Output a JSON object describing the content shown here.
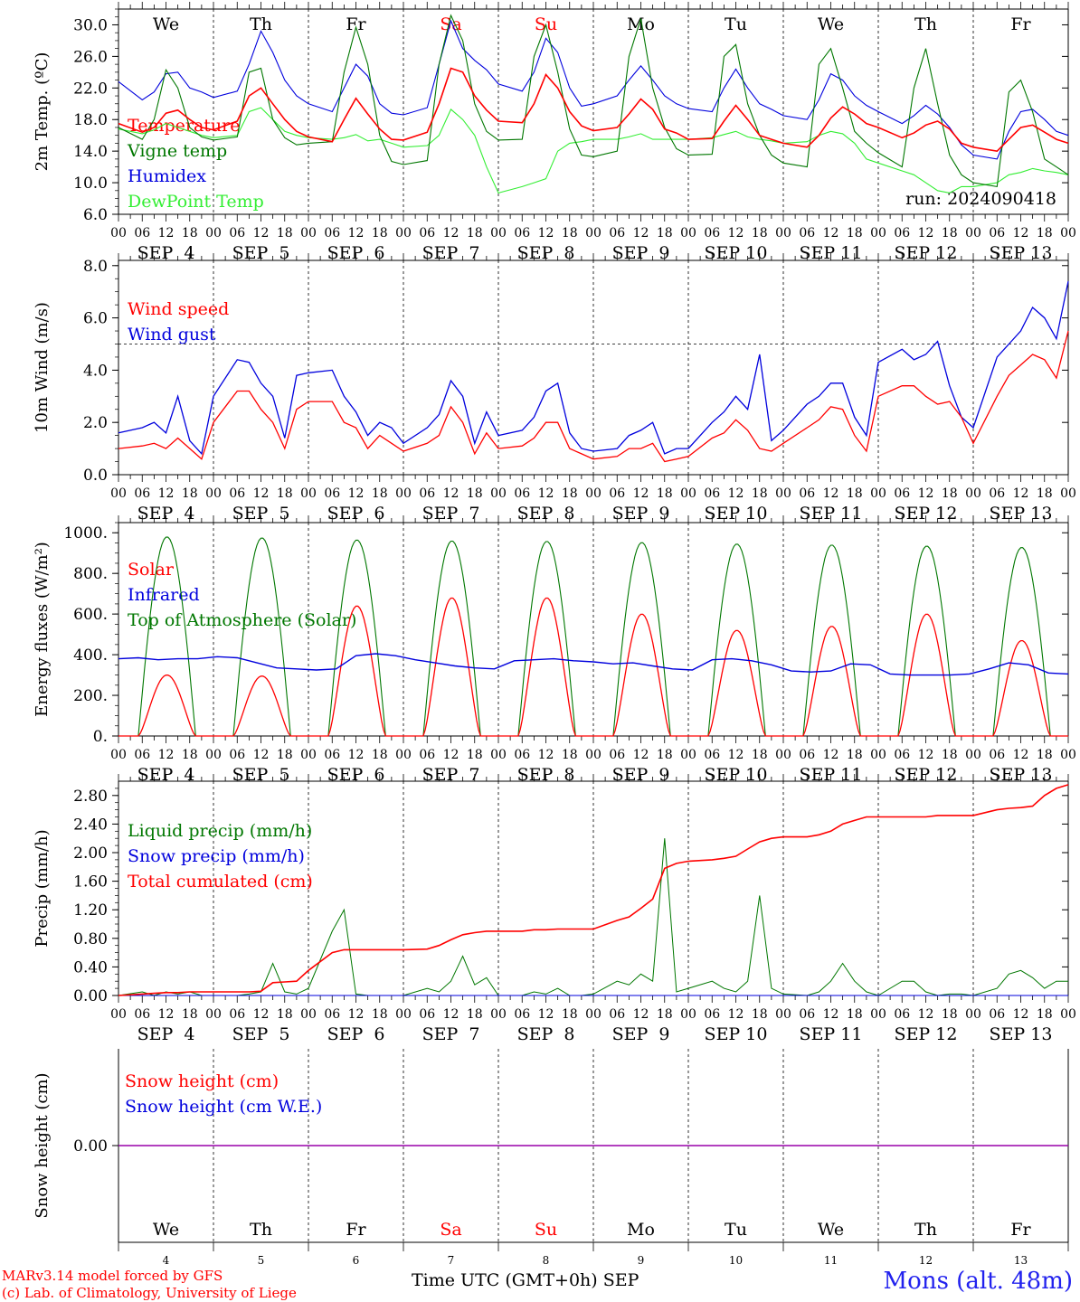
{
  "chart_data": [
    {
      "type": "line",
      "ylabel": "2m Temp. (ºC)",
      "yticks": [
        "6.0",
        "10.0",
        "14.0",
        "18.0",
        "22.0",
        "26.0",
        "30.0"
      ],
      "ylim": [
        6,
        32
      ],
      "run_label": "run: 2024090418",
      "legend": [
        "Temperature",
        "Vigne temp",
        "Humidex",
        "DewPoint Temp"
      ],
      "colors": {
        "Temperature": "#ff0000",
        "Vigne temp": "#007700",
        "Humidex": "#0000dd",
        "DewPoint Temp": "#33ee33"
      },
      "x_hours": [
        0,
        6,
        9,
        12,
        15,
        18,
        21,
        24,
        30,
        33,
        36,
        39,
        42,
        45,
        48,
        54,
        57,
        60,
        63,
        66,
        69,
        72,
        78,
        81,
        84,
        87,
        90,
        93,
        96,
        102,
        105,
        108,
        111,
        114,
        117,
        120,
        126,
        129,
        132,
        135,
        138,
        141,
        144,
        150,
        153,
        156,
        159,
        162,
        165,
        168,
        174,
        177,
        180,
        183,
        186,
        189,
        192,
        198,
        201,
        204,
        207,
        210,
        213,
        216,
        222,
        225,
        228,
        231,
        234,
        237,
        240
      ],
      "series": [
        {
          "name": "Temperature",
          "values": [
            17.5,
            16.4,
            17,
            18.8,
            19.2,
            18,
            17,
            16.7,
            17.8,
            21,
            22,
            20,
            18,
            16.5,
            15.8,
            15.2,
            18,
            20.7,
            18.7,
            16.8,
            15.5,
            15.4,
            16.4,
            20,
            24.5,
            24,
            21,
            19.2,
            17.8,
            17.6,
            20,
            23.7,
            22,
            19,
            17.2,
            16.6,
            17,
            18.7,
            20.6,
            19.3,
            16.8,
            16.3,
            15.5,
            15.6,
            17.8,
            19.8,
            18,
            16,
            15.5,
            15,
            14.5,
            16,
            18.2,
            19.6,
            18.7,
            17.5,
            17,
            15.7,
            16.3,
            17.3,
            17.8,
            16.8,
            15,
            14.5,
            14,
            15.5,
            17,
            17.3,
            16.4,
            15.5,
            15
          ]
        },
        {
          "name": "Vigne temp",
          "values": [
            17,
            15.5,
            18,
            24.3,
            22,
            17,
            15.8,
            15.4,
            15.8,
            24,
            24.5,
            18,
            15.7,
            14.8,
            15,
            15.2,
            24,
            29.7,
            25,
            16,
            12.7,
            12.3,
            12.8,
            25,
            31.2,
            28,
            20,
            16.5,
            15.4,
            15.5,
            26,
            30,
            24,
            16.8,
            13.5,
            13.3,
            14,
            26,
            30.8,
            22,
            17,
            14.3,
            13.5,
            13.6,
            26,
            27.5,
            20,
            16,
            13.5,
            12.5,
            12,
            25,
            27,
            22,
            16.5,
            15,
            13.8,
            12,
            22,
            27,
            20,
            13.5,
            11,
            10,
            9.5,
            21.5,
            23,
            19,
            13,
            12,
            11
          ]
        },
        {
          "name": "Humidex",
          "values": [
            22.8,
            20.5,
            21.5,
            23.8,
            24,
            22,
            21.5,
            20.8,
            21.6,
            25,
            29.2,
            26.5,
            23,
            21,
            20,
            19,
            22,
            25,
            23.5,
            20,
            18.8,
            18.6,
            19.5,
            25,
            30.5,
            27,
            25.5,
            24.3,
            22.5,
            21.6,
            24,
            28.3,
            26.5,
            22,
            19.7,
            20,
            21,
            23,
            24.8,
            23,
            21,
            20,
            19.4,
            19,
            22,
            24.4,
            22,
            20,
            19.3,
            18.5,
            18,
            20.5,
            23.8,
            23,
            21,
            19.8,
            19,
            17.5,
            18.5,
            19.8,
            18.7,
            17,
            14.8,
            13.5,
            13,
            16.5,
            19,
            19.3,
            18,
            16.5,
            16
          ]
        },
        {
          "name": "DewPoint Temp",
          "values": [
            16.8,
            16.2,
            16.7,
            17.5,
            17,
            16.5,
            16,
            15.7,
            16,
            19,
            19.5,
            18,
            16.5,
            16,
            15.7,
            15.5,
            15.7,
            16.1,
            15.3,
            15.5,
            15,
            14.5,
            14.7,
            16,
            19.3,
            18,
            16,
            12,
            8.7,
            9.5,
            10,
            10.5,
            14,
            15,
            15.2,
            15.5,
            15.5,
            15.8,
            16.2,
            15.5,
            15.5,
            15.5,
            15.5,
            15.7,
            16.1,
            16.5,
            15.8,
            15.5,
            15.3,
            15,
            15.2,
            16,
            16.5,
            16.2,
            15,
            13,
            12.5,
            11.5,
            11,
            10,
            9,
            8.7,
            9.5,
            9.5,
            10,
            11,
            11.3,
            11.8,
            11.5,
            11.3,
            11
          ]
        }
      ]
    },
    {
      "type": "line",
      "ylabel": "10m Wind (m/s)",
      "yticks": [
        "0.0",
        "2.0",
        "4.0",
        "6.0",
        "8.0"
      ],
      "ylim": [
        0,
        8
      ],
      "reference_line": 5,
      "legend": [
        "Wind speed",
        "Wind gust"
      ],
      "colors": {
        "Wind speed": "#ff0000",
        "Wind gust": "#0000dd"
      },
      "x_hours": [
        0,
        6,
        9,
        12,
        15,
        18,
        21,
        24,
        30,
        33,
        36,
        39,
        42,
        45,
        48,
        54,
        57,
        60,
        63,
        66,
        69,
        72,
        78,
        81,
        84,
        87,
        90,
        93,
        96,
        102,
        105,
        108,
        111,
        114,
        117,
        120,
        126,
        129,
        132,
        135,
        138,
        141,
        144,
        150,
        153,
        156,
        159,
        162,
        165,
        168,
        174,
        177,
        180,
        183,
        186,
        189,
        192,
        198,
        201,
        204,
        207,
        210,
        213,
        216,
        222,
        225,
        228,
        231,
        234,
        237,
        240
      ],
      "series": [
        {
          "name": "Wind speed",
          "values": [
            1,
            1.1,
            1.2,
            1,
            1.4,
            1,
            0.6,
            2,
            3.2,
            3.2,
            2.5,
            2,
            1,
            2.5,
            2.8,
            2.8,
            2,
            1.8,
            1,
            1.5,
            1.2,
            0.9,
            1.2,
            1.5,
            2.6,
            2,
            0.8,
            1.6,
            1,
            1.1,
            1.4,
            2,
            2,
            1,
            0.8,
            0.6,
            0.7,
            1,
            1,
            1.2,
            0.5,
            0.6,
            0.7,
            1.4,
            1.6,
            2.1,
            1.7,
            1,
            0.9,
            1.2,
            1.8,
            2.1,
            2.6,
            2.5,
            1.5,
            0.9,
            3,
            3.4,
            3.4,
            3,
            2.7,
            2.8,
            2.2,
            1.2,
            3,
            3.8,
            4.2,
            4.6,
            4.4,
            3.7,
            5.5
          ]
        },
        {
          "name": "Wind gust",
          "values": [
            1.6,
            1.8,
            2,
            1.6,
            3,
            1.3,
            0.8,
            3,
            4.4,
            4.3,
            3.5,
            3,
            1.4,
            3.8,
            3.9,
            4,
            3,
            2.4,
            1.5,
            2,
            1.8,
            1.2,
            1.8,
            2.3,
            3.6,
            3,
            1.2,
            2.4,
            1.5,
            1.7,
            2.2,
            3.2,
            3.5,
            1.6,
            1,
            0.9,
            1,
            1.5,
            1.7,
            2,
            0.8,
            1,
            1,
            2,
            2.4,
            3,
            2.5,
            4.6,
            1.3,
            1.7,
            2.7,
            3,
            3.5,
            3.5,
            2.2,
            1.5,
            4.3,
            4.8,
            4.4,
            4.6,
            5.1,
            3.4,
            2.2,
            1.8,
            4.5,
            5,
            5.5,
            6.4,
            6,
            5.2,
            7.4
          ]
        }
      ]
    },
    {
      "type": "line",
      "ylabel": "Energy fluxes (W/m²)",
      "yticks": [
        "0.",
        "200.",
        "400.",
        "600.",
        "800.",
        "1000."
      ],
      "ylim": [
        0,
        1050
      ],
      "legend": [
        "Solar",
        "Infrared",
        "Top of Atmosphere (Solar)"
      ],
      "colors": {
        "Solar": "#ff0000",
        "Infrared": "#0000dd",
        "Top of Atmosphere (Solar)": "#007700"
      },
      "toa_peaks": [
        980,
        975,
        965,
        960,
        958,
        952,
        945,
        940,
        935,
        928
      ],
      "solar_peaks": [
        300,
        295,
        640,
        680,
        680,
        600,
        520,
        540,
        600,
        470
      ],
      "infrared_values": [
        380,
        385,
        375,
        380,
        380,
        390,
        385,
        360,
        335,
        330,
        325,
        330,
        395,
        405,
        395,
        375,
        360,
        345,
        335,
        330,
        370,
        375,
        380,
        370,
        365,
        355,
        360,
        345,
        330,
        325,
        375,
        380,
        370,
        350,
        320,
        315,
        320,
        355,
        350,
        305,
        300,
        300,
        300,
        305,
        330,
        360,
        350,
        310,
        305
      ]
    },
    {
      "type": "line",
      "ylabel": "Precip (mm/h)",
      "yticks": [
        "0.00",
        "0.40",
        "0.80",
        "1.20",
        "1.60",
        "2.00",
        "2.40",
        "2.80"
      ],
      "ylim": [
        0,
        3.0
      ],
      "legend": [
        "Liquid precip (mm/h)",
        "Snow precip (mm/h)",
        "Total cumulated (cm)"
      ],
      "colors": {
        "Liquid precip (mm/h)": "#007700",
        "Snow precip (mm/h)": "#0000dd",
        "Total cumulated (cm)": "#ff0000"
      },
      "x_hours": [
        0,
        6,
        9,
        12,
        15,
        18,
        21,
        24,
        30,
        33,
        36,
        39,
        42,
        45,
        48,
        54,
        57,
        60,
        63,
        66,
        69,
        72,
        78,
        81,
        84,
        87,
        90,
        93,
        96,
        102,
        105,
        108,
        111,
        114,
        117,
        120,
        126,
        129,
        132,
        135,
        138,
        141,
        144,
        150,
        153,
        156,
        159,
        162,
        165,
        168,
        174,
        177,
        180,
        183,
        186,
        189,
        192,
        198,
        201,
        204,
        207,
        210,
        213,
        216,
        222,
        225,
        228,
        231,
        234,
        237,
        240
      ],
      "series": [
        {
          "name": "Liquid precip (mm/h)",
          "values": [
            0,
            0.05,
            0,
            0.05,
            0.02,
            0.05,
            0,
            0,
            0,
            0.02,
            0.05,
            0.45,
            0.05,
            0.02,
            0.1,
            0.9,
            1.2,
            0.02,
            0,
            0,
            0,
            0,
            0.1,
            0.05,
            0.2,
            0.55,
            0.15,
            0.25,
            0,
            0,
            0.05,
            0.02,
            0.1,
            0,
            0,
            0.02,
            0.2,
            0.15,
            0.3,
            0.2,
            2.2,
            0.05,
            0.1,
            0.2,
            0.1,
            0.05,
            0.2,
            1.4,
            0.1,
            0.02,
            0,
            0.05,
            0.2,
            0.45,
            0.2,
            0.05,
            0,
            0.2,
            0.2,
            0.05,
            0,
            0.02,
            0.02,
            0,
            0.1,
            0.3,
            0.35,
            0.25,
            0.1,
            0.2,
            0.2
          ]
        },
        {
          "name": "Snow precip (mm/h)",
          "values": [
            0,
            0,
            0,
            0,
            0,
            0,
            0,
            0,
            0,
            0,
            0,
            0,
            0,
            0,
            0,
            0,
            0,
            0,
            0,
            0,
            0,
            0,
            0,
            0,
            0,
            0,
            0,
            0,
            0,
            0,
            0,
            0,
            0,
            0,
            0,
            0,
            0,
            0,
            0,
            0,
            0,
            0,
            0,
            0,
            0,
            0,
            0,
            0,
            0,
            0,
            0,
            0,
            0,
            0,
            0,
            0,
            0,
            0,
            0,
            0,
            0,
            0,
            0,
            0,
            0,
            0,
            0,
            0,
            0,
            0,
            0
          ]
        },
        {
          "name": "Total cumulated (cm)",
          "values": [
            0,
            0.02,
            0.03,
            0.04,
            0.04,
            0.05,
            0.05,
            0.05,
            0.05,
            0.05,
            0.06,
            0.18,
            0.19,
            0.2,
            0.35,
            0.6,
            0.64,
            0.64,
            0.64,
            0.64,
            0.64,
            0.64,
            0.65,
            0.7,
            0.78,
            0.85,
            0.88,
            0.9,
            0.9,
            0.9,
            0.92,
            0.92,
            0.93,
            0.93,
            0.93,
            0.93,
            1.05,
            1.1,
            1.22,
            1.35,
            1.78,
            1.85,
            1.88,
            1.9,
            1.92,
            1.95,
            2.05,
            2.15,
            2.2,
            2.22,
            2.22,
            2.25,
            2.3,
            2.4,
            2.45,
            2.5,
            2.5,
            2.5,
            2.5,
            2.5,
            2.52,
            2.52,
            2.52,
            2.52,
            2.6,
            2.62,
            2.63,
            2.65,
            2.8,
            2.9,
            2.95
          ]
        }
      ]
    },
    {
      "type": "line",
      "ylabel": "Snow height (cm)",
      "yticks": [
        "0.00"
      ],
      "ylim": [
        -1,
        1
      ],
      "legend": [
        "Snow height (cm)",
        "Snow height (cm W.E.)"
      ],
      "colors": {
        "Snow height (cm)": "#ff0000",
        "Snow height (cm W.E.)": "#0000dd",
        "overlap": "#9900aa"
      },
      "value": 0
    }
  ],
  "x_axis": {
    "hour_labels": [
      "00",
      "06",
      "12",
      "18"
    ],
    "final_label": "00",
    "date_labels": [
      "SEP  4",
      "SEP  5",
      "SEP  6",
      "SEP  7",
      "SEP  8",
      "SEP  9",
      "SEP 10",
      "SEP 11",
      "SEP 12",
      "SEP 13"
    ],
    "weekdays": [
      "We",
      "Th",
      "Fr",
      "Sa",
      "Su",
      "Mo",
      "Tu",
      "We",
      "Th",
      "Fr"
    ],
    "weekend_flags": [
      false,
      false,
      false,
      true,
      true,
      false,
      false,
      false,
      false,
      false
    ],
    "day_numbers": [
      "4",
      "5",
      "6",
      "7",
      "8",
      "9",
      "10",
      "11",
      "12",
      "13"
    ],
    "title": "Time UTC (GMT+0h)",
    "month": "SEP"
  },
  "footer": {
    "credit_1": "MARv3.14 model forced by GFS",
    "credit_2": "(c) Lab. of Climatology, University of Liege",
    "station": "Mons (alt. 48m)"
  },
  "colors": {
    "weekend": "#ff0000",
    "axis": "#000000"
  }
}
